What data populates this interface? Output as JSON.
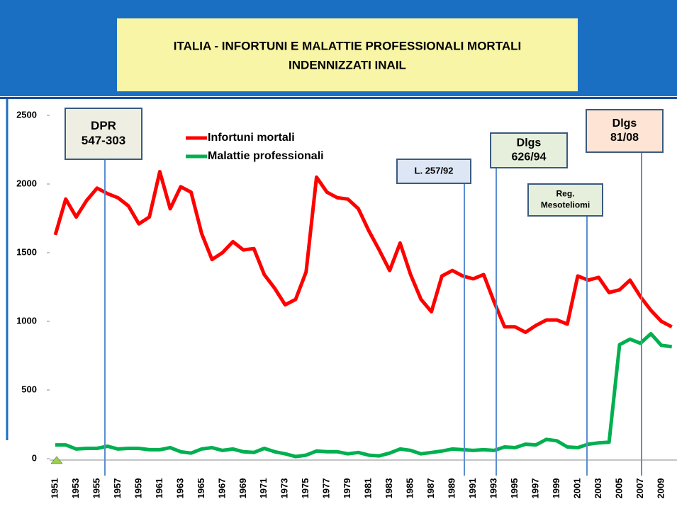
{
  "chart_data": {
    "type": "line",
    "title": [
      "ITALIA - INFORTUNI E MALATTIE PROFESSIONALI MORTALI",
      "INDENNIZZATI  INAIL"
    ],
    "categories": [
      "1951",
      null,
      "1953",
      null,
      "1955",
      null,
      "1957",
      null,
      "1959",
      null,
      "1961",
      null,
      "1963",
      null,
      "1965",
      null,
      "1967",
      null,
      "1969",
      null,
      "1971",
      null,
      "1973",
      null,
      "1975",
      null,
      "1977",
      null,
      "1979",
      null,
      "1981",
      null,
      "1983",
      null,
      "1985",
      null,
      "1987",
      null,
      "1989",
      null,
      "1991",
      null,
      "1993",
      null,
      "1995",
      null,
      "1997",
      null,
      "1999",
      null,
      "2001",
      null,
      "2003",
      null,
      "2005",
      null,
      "2007",
      null,
      "2009",
      null
    ],
    "series": [
      {
        "name": "Infortuni mortali",
        "color": "#ff0000",
        "values": [
          1630,
          1890,
          1760,
          1880,
          1970,
          1930,
          1900,
          1840,
          1710,
          1760,
          2090,
          1820,
          1980,
          1940,
          1640,
          1450,
          1500,
          1580,
          1520,
          1530,
          1340,
          1240,
          1120,
          1160,
          1360,
          2050,
          1940,
          1900,
          1890,
          1820,
          1660,
          1520,
          1370,
          1570,
          1340,
          1160,
          1070,
          1330,
          1370,
          1330,
          1310,
          1340,
          1140,
          960,
          960,
          920,
          970,
          1010,
          1010,
          980,
          1330,
          1300,
          1320,
          1210,
          1230,
          1300,
          1180,
          1080,
          1000,
          960
        ]
      },
      {
        "name": "Malattie professionali",
        "color": "#00b050",
        "values": [
          100,
          100,
          70,
          75,
          75,
          90,
          70,
          75,
          75,
          65,
          65,
          80,
          50,
          40,
          70,
          80,
          60,
          70,
          50,
          45,
          75,
          50,
          35,
          15,
          25,
          55,
          50,
          50,
          35,
          45,
          25,
          20,
          40,
          70,
          60,
          35,
          45,
          55,
          70,
          65,
          60,
          65,
          60,
          85,
          80,
          105,
          100,
          140,
          130,
          85,
          80,
          105,
          115,
          120,
          830,
          870,
          840,
          910,
          825,
          815
        ]
      }
    ],
    "ylim": [
      0,
      2500
    ],
    "yticks": [
      0,
      500,
      1000,
      1500,
      2000,
      2500
    ],
    "annotations": [
      {
        "lines": [
          "DPR",
          "547-303"
        ],
        "color": "#eeeee2"
      },
      {
        "lines": [
          "L. 257/92"
        ],
        "color": "#dde6f4"
      },
      {
        "lines": [
          "Dlgs",
          "626/94"
        ],
        "color": "#e6efdc"
      },
      {
        "lines": [
          "Reg.",
          "Mesoteliomi"
        ],
        "color": "#e6efdc"
      },
      {
        "lines": [
          "Dlgs",
          "81/08"
        ],
        "color": "#fde4d4"
      }
    ]
  }
}
